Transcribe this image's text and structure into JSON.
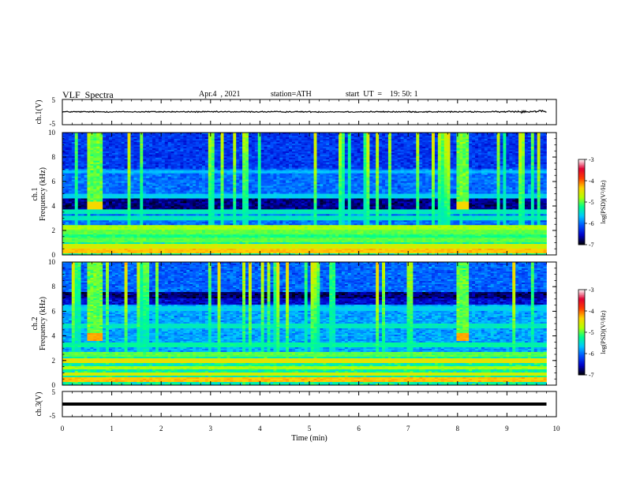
{
  "header": {
    "title": "VLF  Spectra",
    "date": "Apr.4  , 2021",
    "station": "station=ATH",
    "start_ut": "start  UT  =    19: 50: 1"
  },
  "chart_data": [
    {
      "type": "line",
      "panel": "ch1-waveform",
      "ylabel": "ch.1(V)",
      "ylim": [
        -5,
        5
      ],
      "y_tick_labels": [
        "5",
        "-5"
      ],
      "xlim": [
        0,
        10
      ],
      "x_end": 9.8,
      "level": 0.1,
      "noise": "low-amplitude, slightly rising near end"
    },
    {
      "type": "heatmap",
      "panel": "ch1-spectrogram",
      "ylabel_line1": "ch.1",
      "ylabel_line2": "Frequency  (kHz)",
      "ylim": [
        0,
        10
      ],
      "y_tick_labels": [
        "0",
        "2",
        "4",
        "6",
        "8",
        "10"
      ],
      "xlim": [
        0,
        10
      ],
      "x_end": 9.8,
      "background_level": -6.0,
      "bands": [
        {
          "freq": 0.3,
          "level": -4.3
        },
        {
          "freq": 0.7,
          "level": -4.6
        },
        {
          "freq": 1.2,
          "level": -5.0
        },
        {
          "freq": 1.6,
          "level": -5.2
        },
        {
          "freq": 1.9,
          "level": -5.0
        },
        {
          "freq": 2.2,
          "level": -4.8
        },
        {
          "freq": 3.0,
          "level": -5.4
        },
        {
          "freq": 3.5,
          "level": -5.4
        },
        {
          "freq": 4.8,
          "level": -5.6
        },
        {
          "freq": 6.8,
          "level": -5.7
        }
      ],
      "quiet_band": [
        3.7,
        4.6
      ],
      "bursts": [
        {
          "t_start": 0.5,
          "t_end": 0.8,
          "f_low": 3.7,
          "f_high": 10,
          "peak_freq": 4.0,
          "peak_level": -4.4
        },
        {
          "t_start": 7.95,
          "t_end": 8.25,
          "f_low": 3.7,
          "f_high": 10,
          "peak_freq": 4.0,
          "peak_level": -4.4
        }
      ]
    },
    {
      "type": "heatmap",
      "panel": "ch2-spectrogram",
      "ylabel_line1": "ch.2",
      "ylabel_line2": "Frequency  (kHz)",
      "ylim": [
        0,
        10
      ],
      "y_tick_labels": [
        "0",
        "2",
        "4",
        "6",
        "8",
        "10"
      ],
      "xlim": [
        0,
        10
      ],
      "x_end": 9.8,
      "background_level": -5.8,
      "bands": [
        {
          "freq": 0.4,
          "level": -4.3
        },
        {
          "freq": 0.9,
          "level": -4.6
        },
        {
          "freq": 1.4,
          "level": -4.8
        },
        {
          "freq": 2.0,
          "level": -4.5
        },
        {
          "freq": 2.5,
          "level": -5.0
        },
        {
          "freq": 3.3,
          "level": -5.3
        },
        {
          "freq": 4.8,
          "level": -5.4
        },
        {
          "freq": 6.2,
          "level": -5.6
        }
      ],
      "quiet_band": [
        6.5,
        7.5
      ],
      "bursts": [
        {
          "t_start": 0.5,
          "t_end": 0.8,
          "f_low": 3.6,
          "f_high": 10,
          "peak_freq": 3.9,
          "peak_level": -4.2
        },
        {
          "t_start": 7.95,
          "t_end": 8.25,
          "f_low": 3.6,
          "f_high": 10,
          "peak_freq": 3.9,
          "peak_level": -4.2
        }
      ]
    },
    {
      "type": "line",
      "panel": "ch3-waveform",
      "ylabel": "ch.3(V)",
      "ylim": [
        -5,
        5
      ],
      "y_tick_labels": [
        "5",
        "-5"
      ],
      "xlim": [
        0,
        10
      ],
      "x_end": 9.8,
      "level": 0.0,
      "xlabel": "Time  (min)",
      "x_tick_labels": [
        "0",
        "1",
        "2",
        "3",
        "4",
        "5",
        "6",
        "7",
        "8",
        "9",
        "10"
      ]
    }
  ],
  "colorbar": {
    "label": "log(PSD)(V²/Hz)",
    "range": [
      -7,
      -3
    ],
    "tick_labels": [
      "-3",
      "-4",
      "-5",
      "-6",
      "-7"
    ],
    "colors": [
      "#000000",
      "#0000c8",
      "#0050ff",
      "#00c8ff",
      "#00ff8c",
      "#b4ff00",
      "#ffd200",
      "#ff3c00",
      "#e10032",
      "#ffffff"
    ]
  }
}
